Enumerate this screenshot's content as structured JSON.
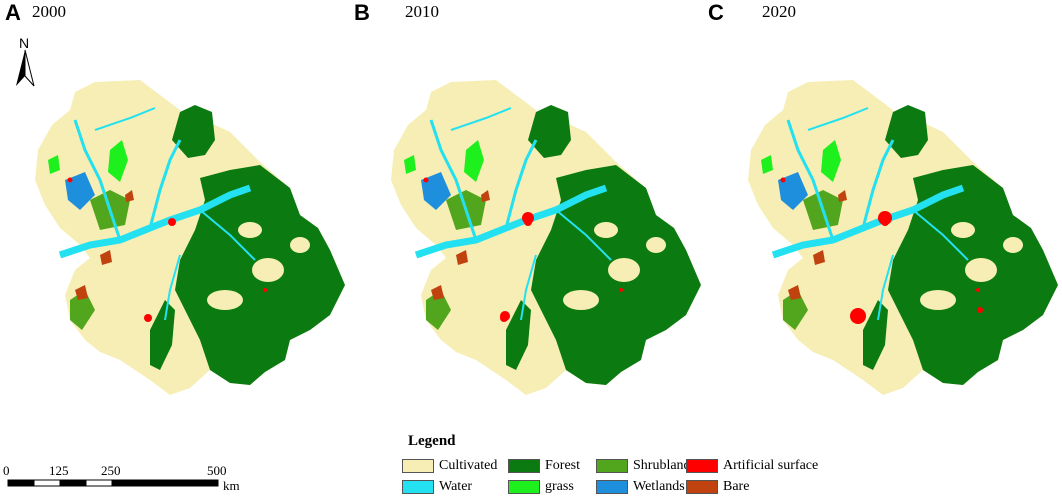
{
  "panels": [
    {
      "letter": "A",
      "year": "2000"
    },
    {
      "letter": "B",
      "year": "2010"
    },
    {
      "letter": "C",
      "year": "2020"
    }
  ],
  "north_arrow": {
    "label": "N"
  },
  "scale_bar": {
    "ticks": [
      "0",
      "125",
      "250",
      "500"
    ],
    "unit": "km"
  },
  "legend": {
    "title": "Legend",
    "items": [
      {
        "label": "Cultivated",
        "color": "#f6eeb4"
      },
      {
        "label": "Forest",
        "color": "#0b7a10"
      },
      {
        "label": "Shrubland",
        "color": "#52a61e"
      },
      {
        "label": "Artificial surface",
        "color": "#ff0000"
      },
      {
        "label": "Water",
        "color": "#23e1f0"
      },
      {
        "label": "grass",
        "color": "#1ef01e"
      },
      {
        "label": "Wetlands",
        "color": "#1e8fdc"
      },
      {
        "label": "Bare",
        "color": "#c0420e"
      }
    ]
  }
}
